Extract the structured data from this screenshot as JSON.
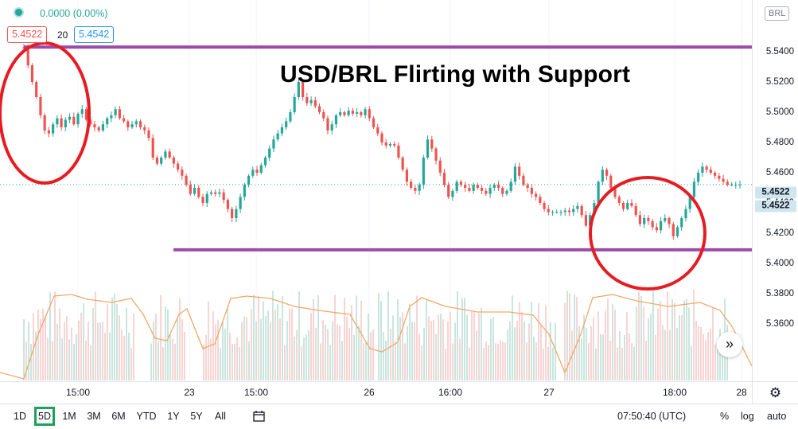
{
  "legend": {
    "change": "0.0000 (0.00%)",
    "bid": "5.4522",
    "spread": "20",
    "ask": "5.4542"
  },
  "annotation": {
    "title": "USD/BRL Flirting with Support"
  },
  "currency_badge": "BRL",
  "price_labels": [
    "5.4522",
    "5.4522"
  ],
  "time_axis": [
    "15:00",
    "23",
    "15:00",
    "26",
    "16:00",
    "27",
    "18:00",
    "28"
  ],
  "price_axis_ticks": [
    "5.5400",
    "5.5200",
    "5.5000",
    "5.4800",
    "5.4600",
    "5.4400",
    "5.4200",
    "5.4000",
    "5.3800",
    "5.3600"
  ],
  "timeframes": [
    "1D",
    "5D",
    "1M",
    "3M",
    "6M",
    "YTD",
    "1Y",
    "5Y",
    "All"
  ],
  "active_timeframe": "5D",
  "clock": "07:50:40 (UTC)",
  "scale_options": [
    "%",
    "log",
    "auto"
  ],
  "colors": {
    "up": "#26a69a",
    "down": "#ef5350",
    "support_line": "#9c4ba8",
    "circle": "#e51c23",
    "volume_ma": "#f0a868"
  },
  "chart_data": {
    "type": "candlestick",
    "pair": "USD/BRL",
    "ylim": [
      5.355,
      5.555
    ],
    "lines": [
      {
        "name": "resistance",
        "y": 5.5431
      },
      {
        "name": "support",
        "y": 5.409
      }
    ],
    "close": [
      5.5422,
      5.531,
      5.52,
      5.51,
      5.498,
      5.488,
      5.486,
      5.492,
      5.496,
      5.49,
      5.495,
      5.497,
      5.492,
      5.499,
      5.502,
      5.495,
      5.492,
      5.49,
      5.488,
      5.492,
      5.496,
      5.498,
      5.502,
      5.496,
      5.494,
      5.49,
      5.492,
      5.494,
      5.49,
      5.488,
      5.483,
      5.47,
      5.466,
      5.47,
      5.474,
      5.47,
      5.466,
      5.462,
      5.458,
      5.452,
      5.446,
      5.45,
      5.444,
      5.44,
      5.446,
      5.447,
      5.446,
      5.447,
      5.442,
      5.436,
      5.43,
      5.436,
      5.444,
      5.452,
      5.458,
      5.462,
      5.46,
      5.465,
      5.47,
      5.476,
      5.482,
      5.486,
      5.49,
      5.494,
      5.5,
      5.51,
      5.52,
      5.51,
      5.506,
      5.508,
      5.504,
      5.5,
      5.496,
      5.488,
      5.492,
      5.498,
      5.5,
      5.498,
      5.501,
      5.499,
      5.5,
      5.498,
      5.502,
      5.496,
      5.49,
      5.486,
      5.48,
      5.478,
      5.479,
      5.478,
      5.47,
      5.462,
      5.454,
      5.45,
      5.448,
      5.452,
      5.47,
      5.482,
      5.476,
      5.468,
      5.46,
      5.452,
      5.444,
      5.448,
      5.454,
      5.452,
      5.45,
      5.448,
      5.452,
      5.45,
      5.448,
      5.446,
      5.45,
      5.452,
      5.45,
      5.446,
      5.448,
      5.454,
      5.464,
      5.458,
      5.452,
      5.45,
      5.446,
      5.444,
      5.44,
      5.436,
      5.434,
      5.434,
      5.434,
      5.434,
      5.435,
      5.434,
      5.436,
      5.438,
      5.432,
      5.425,
      5.432,
      5.44,
      5.454,
      5.462,
      5.458,
      5.45,
      5.444,
      5.44,
      5.436,
      5.44,
      5.438,
      5.432,
      5.426,
      5.43,
      5.428,
      5.424,
      5.422,
      5.428,
      5.43,
      5.426,
      5.418,
      5.424,
      5.43,
      5.436,
      5.444,
      5.454,
      5.46,
      5.464,
      5.462,
      5.46,
      5.458,
      5.456,
      5.454,
      5.452,
      5.452,
      5.452,
      5.4522
    ]
  }
}
